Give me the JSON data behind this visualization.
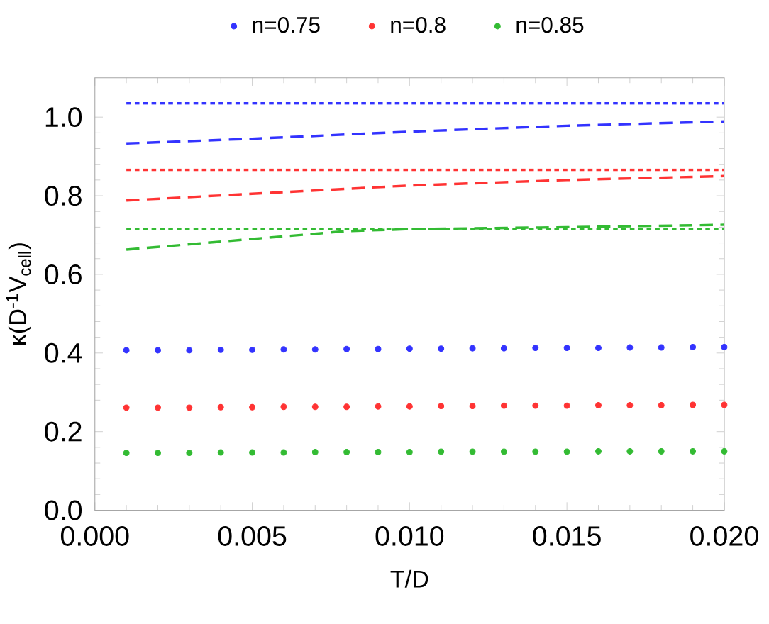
{
  "chart_data": {
    "type": "scatter",
    "xlabel": "T/D",
    "ylabel": "κ(D$^{-1}$V$_{cell}$)",
    "xlim": [
      0,
      0.02
    ],
    "ylim": [
      0,
      1.1
    ],
    "xticks": [
      {
        "value": 0,
        "label": "0.000"
      },
      {
        "value": 0.005,
        "label": "0.005"
      },
      {
        "value": 0.01,
        "label": "0.010"
      },
      {
        "value": 0.015,
        "label": "0.015"
      },
      {
        "value": 0.02,
        "label": "0.020"
      }
    ],
    "yticks": [
      {
        "value": 0,
        "label": "0.0"
      },
      {
        "value": 0.2,
        "label": "0.2"
      },
      {
        "value": 0.4,
        "label": "0.4"
      },
      {
        "value": 0.6,
        "label": "0.6"
      },
      {
        "value": 0.8,
        "label": "0.8"
      },
      {
        "value": 1,
        "label": "1.0"
      }
    ],
    "grid": false,
    "legend": "top",
    "series": [
      {
        "name": "n=0.75",
        "marker": "circle",
        "color": "#3333ff",
        "x": [
          0.001,
          0.002,
          0.003,
          0.004,
          0.005,
          0.006,
          0.007,
          0.008,
          0.009,
          0.01,
          0.011,
          0.012,
          0.013,
          0.014,
          0.015,
          0.016,
          0.017,
          0.018,
          0.019,
          0.02
        ],
        "values": [
          0.407,
          0.407,
          0.407,
          0.408,
          0.408,
          0.409,
          0.409,
          0.41,
          0.41,
          0.411,
          0.411,
          0.412,
          0.412,
          0.413,
          0.413,
          0.413,
          0.414,
          0.414,
          0.415,
          0.415
        ]
      },
      {
        "name": "n=0.8",
        "marker": "circle",
        "color": "#ff3333",
        "x": [
          0.001,
          0.002,
          0.003,
          0.004,
          0.005,
          0.006,
          0.007,
          0.008,
          0.009,
          0.01,
          0.011,
          0.012,
          0.013,
          0.014,
          0.015,
          0.016,
          0.017,
          0.018,
          0.019,
          0.02
        ],
        "values": [
          0.261,
          0.261,
          0.261,
          0.262,
          0.262,
          0.263,
          0.263,
          0.263,
          0.264,
          0.264,
          0.265,
          0.265,
          0.266,
          0.266,
          0.266,
          0.267,
          0.267,
          0.267,
          0.268,
          0.268
        ]
      },
      {
        "name": "n=0.85",
        "marker": "circle",
        "color": "#33bb33",
        "x": [
          0.001,
          0.002,
          0.003,
          0.004,
          0.005,
          0.006,
          0.007,
          0.008,
          0.009,
          0.01,
          0.011,
          0.012,
          0.013,
          0.014,
          0.015,
          0.016,
          0.017,
          0.018,
          0.019,
          0.02
        ],
        "values": [
          0.146,
          0.146,
          0.146,
          0.147,
          0.147,
          0.147,
          0.148,
          0.148,
          0.148,
          0.148,
          0.149,
          0.149,
          0.149,
          0.149,
          0.149,
          0.15,
          0.15,
          0.15,
          0.15,
          0.15
        ]
      },
      {
        "type": "line",
        "line_style": "dotted",
        "marker": "none",
        "color": "#3333ff",
        "x": [
          0.001,
          0.02
        ],
        "values": [
          1.035,
          1.035
        ]
      },
      {
        "type": "line",
        "line_style": "dashed",
        "marker": "none",
        "color": "#3333ff",
        "x": [
          0.001,
          0.005,
          0.01,
          0.015,
          0.02
        ],
        "values": [
          0.933,
          0.945,
          0.963,
          0.978,
          0.989
        ]
      },
      {
        "type": "line",
        "line_style": "dotted",
        "marker": "none",
        "color": "#ff3333",
        "x": [
          0.001,
          0.02
        ],
        "values": [
          0.866,
          0.866
        ]
      },
      {
        "type": "line",
        "line_style": "dashed",
        "marker": "none",
        "color": "#ff3333",
        "x": [
          0.001,
          0.005,
          0.01,
          0.015,
          0.02
        ],
        "values": [
          0.788,
          0.805,
          0.826,
          0.84,
          0.85
        ]
      },
      {
        "type": "line",
        "line_style": "dotted",
        "marker": "none",
        "color": "#33bb33",
        "x": [
          0.001,
          0.02
        ],
        "values": [
          0.715,
          0.715
        ]
      },
      {
        "type": "line",
        "line_style": "dashed",
        "marker": "none",
        "color": "#33bb33",
        "x": [
          0.001,
          0.005,
          0.008,
          0.01,
          0.015,
          0.02
        ],
        "values": [
          0.663,
          0.69,
          0.71,
          0.715,
          0.72,
          0.726
        ]
      }
    ]
  }
}
